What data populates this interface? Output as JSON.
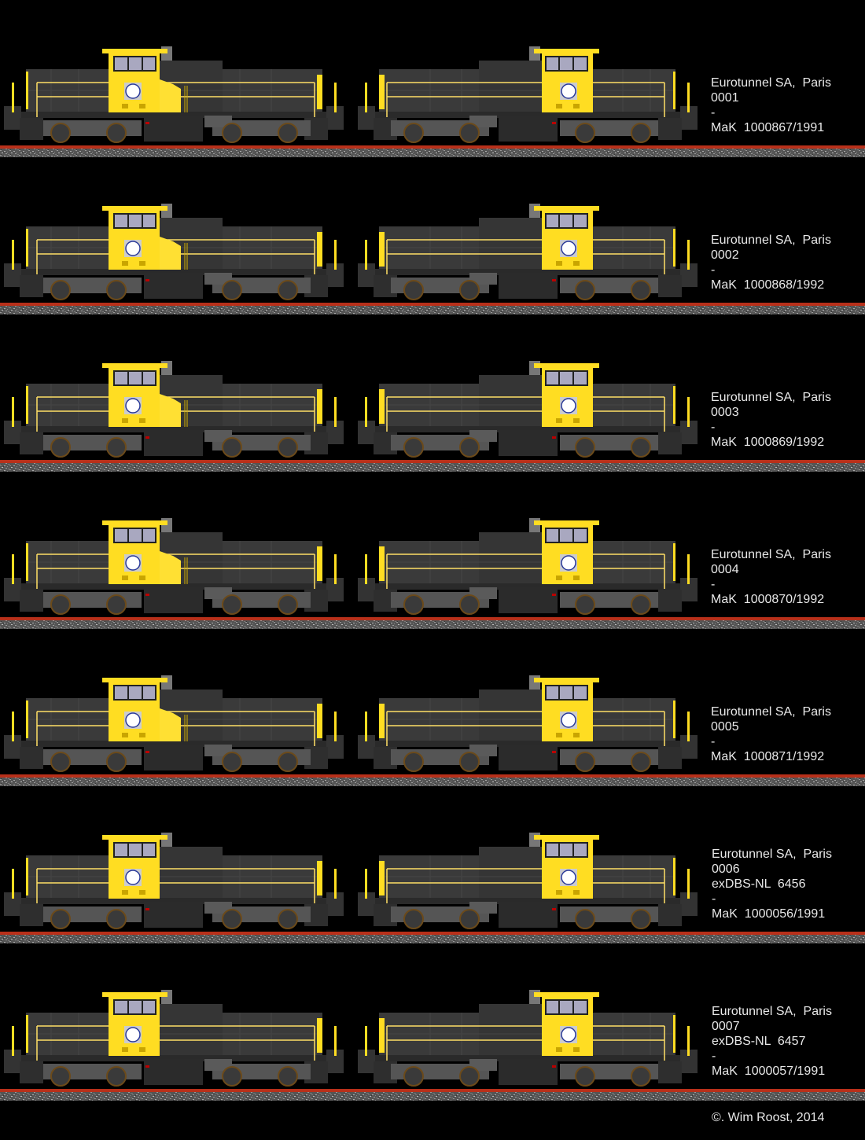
{
  "colors": {
    "background": "#000000",
    "body": "#3a3a3a",
    "cab_yellow": "#ffdd22",
    "rail": "#b8301a",
    "ballast": "#777777",
    "text": "#e8e8e8"
  },
  "rows": [
    {
      "variant": "yellow-nose",
      "lines": [
        "Eurotunnel SA,  Paris",
        "0001",
        "-",
        "MaK  1000867/1991"
      ]
    },
    {
      "variant": "yellow-nose",
      "lines": [
        "Eurotunnel SA,  Paris",
        "0002",
        "-",
        "MaK  1000868/1992"
      ]
    },
    {
      "variant": "yellow-nose",
      "lines": [
        "Eurotunnel SA,  Paris",
        "0003",
        "-",
        "MaK  1000869/1992"
      ]
    },
    {
      "variant": "yellow-nose",
      "lines": [
        "Eurotunnel SA,  Paris",
        "0004",
        "-",
        "MaK  1000870/1992"
      ]
    },
    {
      "variant": "yellow-nose",
      "lines": [
        "Eurotunnel SA,  Paris",
        "0005",
        "-",
        "MaK  1000871/1992"
      ]
    },
    {
      "variant": "ex-dbs",
      "lines": [
        "Eurotunnel SA,  Paris",
        "0006",
        "exDBS-NL  6456",
        "-",
        "MaK  1000056/1991"
      ]
    },
    {
      "variant": "ex-dbs",
      "lines": [
        "Eurotunnel SA,  Paris",
        "0007",
        "exDBS-NL  6457",
        "-",
        "MaK  1000057/1991"
      ]
    }
  ],
  "copyright": "©. Wim Roost, 2014"
}
